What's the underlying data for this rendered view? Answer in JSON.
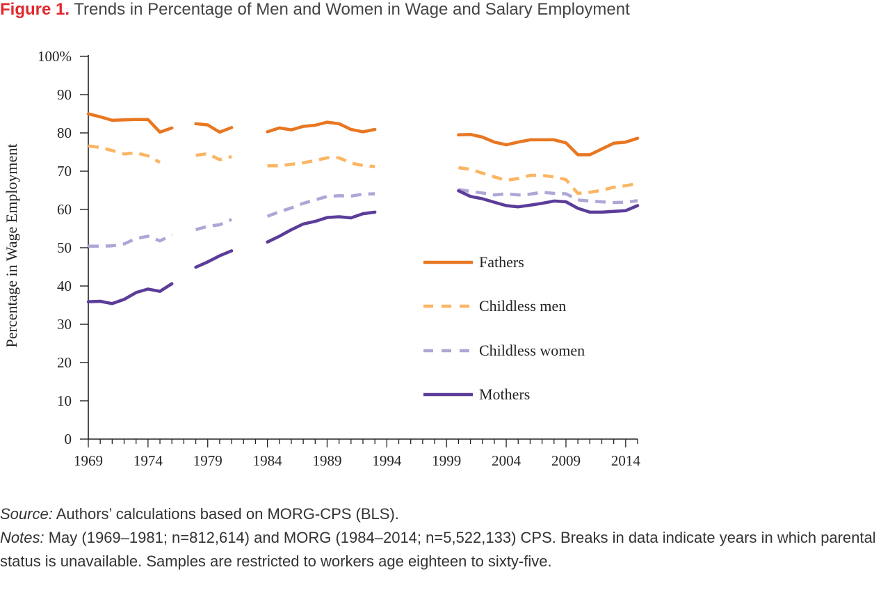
{
  "figure": {
    "label": "Figure 1.",
    "title": "Trends in Percentage of Men and Women in Wage and Salary Employment"
  },
  "source": {
    "label": "Source:",
    "text": "Authors’ calculations based on MORG-CPS (BLS)."
  },
  "notes": {
    "label": "Notes:",
    "text": "May (1969–1981; n=812,614) and MORG (1984–2014; n=5,522,133) CPS. Breaks in data indicate years in which parental status is unavailable. Samples are restricted to workers age eighteen to sixty-five."
  },
  "chart_data": {
    "type": "line",
    "title": "",
    "xlabel": "",
    "ylabel": "Percentage in Wage Employment",
    "xlim": [
      1969,
      2015
    ],
    "ylim": [
      0,
      100
    ],
    "x_ticks": [
      1969,
      1974,
      1979,
      1984,
      1989,
      1994,
      1999,
      2004,
      2009,
      2014
    ],
    "x_tick_labels": [
      "1969",
      "1974",
      "1979",
      "1984",
      "1989",
      "1994",
      "1999",
      "2004",
      "2009",
      "2014"
    ],
    "y_ticks": [
      0,
      10,
      20,
      30,
      40,
      50,
      60,
      70,
      80,
      90,
      100
    ],
    "y_tick_labels": [
      "0",
      "10",
      "20",
      "30",
      "40",
      "50",
      "60",
      "70",
      "80",
      "90",
      "100%"
    ],
    "grid": false,
    "legend_position": "right-center",
    "series": [
      {
        "name": "Fathers",
        "color": "#e87722",
        "style": "solid",
        "segments": [
          {
            "x": [
              1969,
              1970,
              1971,
              1972,
              1973,
              1974,
              1975,
              1976,
              1977
            ],
            "y": [
              85.0,
              84.2,
              83.3,
              83.4,
              83.5,
              83.5,
              80.2,
              81.3,
              null
            ]
          },
          {
            "x": [
              1978,
              1979,
              1980,
              1981
            ],
            "y": [
              82.4,
              82.1,
              80.2,
              81.4
            ]
          },
          {
            "x": [
              1984,
              1985,
              1986,
              1987,
              1988,
              1989,
              1990,
              1991,
              1992,
              1993
            ],
            "y": [
              80.3,
              81.3,
              80.8,
              81.7,
              82.0,
              82.8,
              82.4,
              80.9,
              80.3,
              80.9
            ]
          },
          {
            "x": [
              2000,
              2001,
              2002,
              2003,
              2004,
              2005,
              2006,
              2007,
              2008,
              2009,
              2010,
              2011,
              2012,
              2013,
              2014,
              2015
            ],
            "y": [
              79.5,
              79.6,
              78.9,
              77.6,
              76.9,
              77.6,
              78.2,
              78.2,
              78.2,
              77.4,
              74.3,
              74.3,
              75.8,
              77.3,
              77.6,
              78.6
            ]
          }
        ]
      },
      {
        "name": "Childless men",
        "color": "#fbb563",
        "style": "dashed",
        "segments": [
          {
            "x": [
              1969,
              1970,
              1971,
              1972,
              1973,
              1974,
              1975
            ],
            "y": [
              76.6,
              76.2,
              75.4,
              74.5,
              74.8,
              74.0,
              72.3
            ]
          },
          {
            "x": [
              1978,
              1979,
              1980,
              1981
            ],
            "y": [
              74.1,
              74.6,
              73.0,
              73.8
            ]
          },
          {
            "x": [
              1984,
              1985,
              1986,
              1987,
              1988,
              1989,
              1990,
              1991,
              1992,
              1993
            ],
            "y": [
              71.4,
              71.4,
              71.8,
              72.2,
              72.8,
              73.5,
              73.5,
              72.1,
              71.5,
              71.2
            ]
          },
          {
            "x": [
              2000,
              2001,
              2002,
              2003,
              2004,
              2005,
              2006,
              2007,
              2008,
              2009,
              2010,
              2011,
              2012,
              2013,
              2014,
              2015
            ],
            "y": [
              70.9,
              70.5,
              69.5,
              68.5,
              67.6,
              68.1,
              68.9,
              68.9,
              68.5,
              67.8,
              64.2,
              64.5,
              65.0,
              65.8,
              66.2,
              66.8
            ]
          }
        ]
      },
      {
        "name": "Childless women",
        "color": "#aea7d6",
        "style": "dashed",
        "segments": [
          {
            "x": [
              1969,
              1970,
              1971,
              1972,
              1973,
              1974,
              1975,
              1976,
              1977
            ],
            "y": [
              50.4,
              50.4,
              50.5,
              51.0,
              52.4,
              53.0,
              51.8,
              53.3,
              null
            ]
          },
          {
            "x": [
              1978,
              1979,
              1980,
              1981
            ],
            "y": [
              54.7,
              55.6,
              56.0,
              57.4
            ]
          },
          {
            "x": [
              1984,
              1985,
              1986,
              1987,
              1988,
              1989,
              1990,
              1991,
              1992,
              1993
            ],
            "y": [
              58.2,
              59.4,
              60.4,
              61.6,
              62.5,
              63.4,
              63.6,
              63.5,
              64.0,
              64.1
            ]
          },
          {
            "x": [
              2000,
              2001,
              2002,
              2003,
              2004,
              2005,
              2006,
              2007,
              2008,
              2009,
              2010,
              2011,
              2012,
              2013,
              2014,
              2015
            ],
            "y": [
              65.2,
              64.7,
              64.3,
              63.8,
              64.1,
              63.8,
              64.0,
              64.5,
              64.2,
              64.1,
              62.5,
              62.2,
              62.0,
              61.8,
              61.9,
              62.3
            ]
          }
        ]
      },
      {
        "name": "Mothers",
        "color": "#5b3d99",
        "style": "solid",
        "segments": [
          {
            "x": [
              1969,
              1970,
              1971,
              1972,
              1973,
              1974,
              1975,
              1976
            ],
            "y": [
              35.9,
              36.0,
              35.4,
              36.5,
              38.3,
              39.2,
              38.6,
              40.6
            ]
          },
          {
            "x": [
              1978,
              1979,
              1980,
              1981
            ],
            "y": [
              44.9,
              46.3,
              47.9,
              49.2
            ]
          },
          {
            "x": [
              1984,
              1985,
              1986,
              1987,
              1988,
              1989,
              1990,
              1991,
              1992,
              1993
            ],
            "y": [
              51.5,
              53.0,
              54.7,
              56.2,
              56.9,
              57.9,
              58.1,
              57.8,
              58.9,
              59.3
            ]
          },
          {
            "x": [
              2000,
              2001,
              2002,
              2003,
              2004,
              2005,
              2006,
              2007,
              2008,
              2009,
              2010,
              2011,
              2012,
              2013,
              2014,
              2015
            ],
            "y": [
              64.9,
              63.4,
              62.8,
              61.9,
              61.0,
              60.7,
              61.1,
              61.6,
              62.2,
              62.0,
              60.3,
              59.3,
              59.3,
              59.5,
              59.7,
              61.0
            ]
          }
        ]
      }
    ]
  }
}
